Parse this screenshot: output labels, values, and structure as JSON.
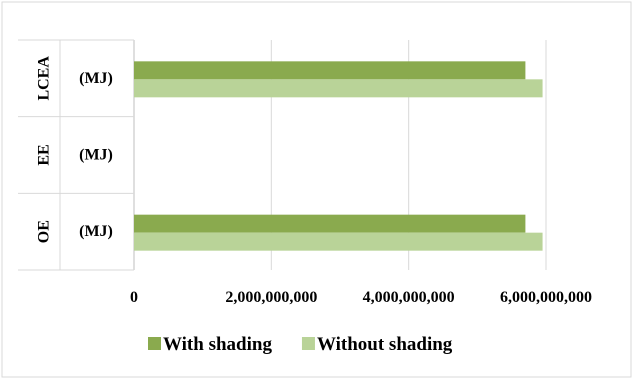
{
  "chart_data": {
    "type": "bar",
    "orientation": "horizontal",
    "categories": [
      {
        "group": "OE",
        "label": "(MJ)"
      },
      {
        "group": "EE",
        "label": "(MJ)"
      },
      {
        "group": "LCEA",
        "label": "(MJ)"
      }
    ],
    "series": [
      {
        "name": "With shading",
        "color": "#8aaa4e",
        "values": [
          5700000000,
          0,
          5700000000
        ]
      },
      {
        "name": "Without shading",
        "color": "#b9d398",
        "values": [
          5950000000,
          0,
          5950000000
        ]
      }
    ],
    "xlim": [
      0,
      6000000000
    ],
    "x_ticks": [
      0,
      2000000000,
      4000000000,
      6000000000
    ],
    "x_tick_labels": [
      "0",
      "2,000,000,000",
      "4,000,000,000",
      "6,000,000,000"
    ],
    "grid": true,
    "legend": "bottom",
    "title": "",
    "xlabel": "",
    "ylabel": ""
  }
}
